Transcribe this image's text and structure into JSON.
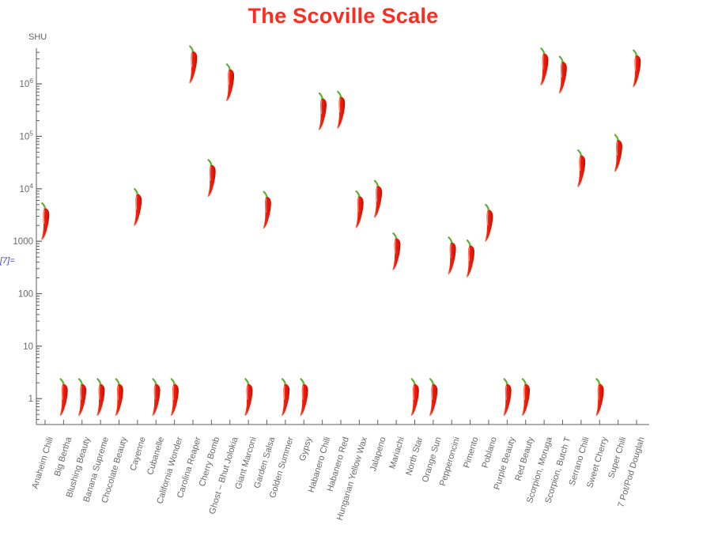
{
  "notebook": {
    "out_label": "[7]="
  },
  "colors": {
    "background": "#ffffff",
    "title": "#fb2c22",
    "axis": "#5e5e5e",
    "tick_label": "#696969",
    "out_label": "#4545cf",
    "pepper_red": "#ee1c0c",
    "pepper_red_dark": "#b80e03",
    "pepper_red_light": "#ff8a72",
    "pepper_green": "#5fae35"
  },
  "chart_data": {
    "type": "scatter",
    "title": "The Scoville Scale",
    "ylabel": "SHU",
    "xlabel": "",
    "y_scale": "log",
    "ylim": [
      0.35,
      4600000
    ],
    "grid": false,
    "legend": null,
    "marker": "chili-pepper-icon",
    "y_ticks": [
      {
        "text": "1",
        "value": 1
      },
      {
        "text": "10",
        "value": 10
      },
      {
        "text": "100",
        "value": 100
      },
      {
        "text": "1000",
        "value": 1000
      },
      {
        "text": "10",
        "exp": "4",
        "value": 10000
      },
      {
        "text": "10",
        "exp": "5",
        "value": 100000
      },
      {
        "text": "10",
        "exp": "6",
        "value": 1000000
      }
    ],
    "categories": [
      "Anaheim Chili",
      "Big Bertha",
      "Blushing Beauty",
      "Banana Supreme",
      "Chocolate Beauty",
      "Cayenne",
      "Cubanelle",
      "California Wonder",
      "Carolina Reaper",
      "Cherry Bomb",
      "Ghost – Bhut Jolokia",
      "Giant Marconi",
      "Garden Salsa",
      "Golden Summer",
      "Gypsy",
      "Habanero Chili",
      "Habanero Red",
      "Hungarian Yellow Wax",
      "Jalapeno",
      "Mariachi",
      "North Star",
      "Orange Sun",
      "Pepperoncini",
      "Pimento",
      "Poblano",
      "Purple Beauty",
      "Red Beauty",
      "Scorpion, Moruga",
      "Scorpion, Butch T",
      "Serrano Chili",
      "Sweet Cherry",
      "Super Chili",
      "7 Pot/Pod Douglah"
    ],
    "values": [
      2250,
      1,
      1,
      1,
      1,
      4200,
      1,
      1,
      2200000,
      15000,
      1000000,
      1,
      3700,
      1,
      1,
      280000,
      300000,
      3800,
      6000,
      600,
      1,
      1,
      500,
      440,
      2100,
      1,
      1,
      2000000,
      1400000,
      23000,
      1,
      45000,
      1850000
    ]
  }
}
